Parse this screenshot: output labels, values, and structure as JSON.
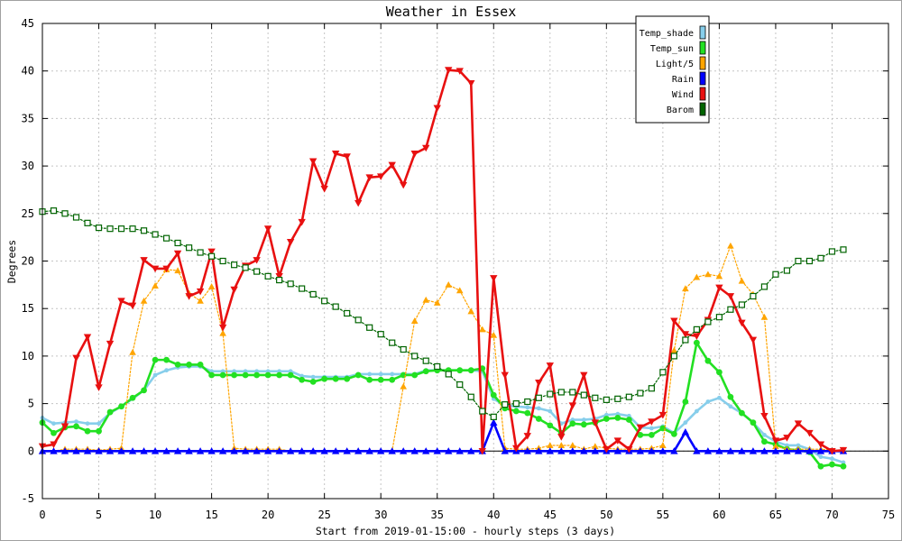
{
  "chart_data": {
    "type": "line",
    "title": "Weather in Essex",
    "xlabel": "Start from 2019-01-15:00 - hourly steps (3 days)",
    "ylabel": "Degrees",
    "xlim": [
      0,
      75
    ],
    "ylim": [
      -5,
      45
    ],
    "xticks": [
      0,
      5,
      10,
      15,
      20,
      25,
      30,
      35,
      40,
      45,
      50,
      55,
      60,
      65,
      70,
      75
    ],
    "yticks": [
      -5,
      0,
      5,
      10,
      15,
      20,
      25,
      30,
      35,
      40,
      45
    ],
    "grid": true,
    "legend": "top-right",
    "x": [
      0,
      1,
      2,
      3,
      4,
      5,
      6,
      7,
      8,
      9,
      10,
      11,
      12,
      13,
      14,
      15,
      16,
      17,
      18,
      19,
      20,
      21,
      22,
      23,
      24,
      25,
      26,
      27,
      28,
      29,
      30,
      31,
      32,
      33,
      34,
      35,
      36,
      37,
      38,
      39,
      40,
      41,
      42,
      43,
      44,
      45,
      46,
      47,
      48,
      49,
      50,
      51,
      52,
      53,
      54,
      55,
      56,
      57,
      58,
      59,
      60,
      61,
      62,
      63,
      64,
      65,
      66,
      67,
      68,
      69,
      70,
      71
    ],
    "series": [
      {
        "name": "Temp_shade",
        "color": "#87ceeb",
        "values": [
          3.5,
          2.9,
          3.0,
          3.1,
          2.9,
          2.9,
          4.0,
          4.7,
          5.5,
          6.4,
          8.0,
          8.5,
          8.8,
          8.9,
          8.9,
          8.4,
          8.4,
          8.4,
          8.4,
          8.4,
          8.4,
          8.4,
          8.4,
          7.9,
          7.8,
          7.8,
          7.8,
          7.8,
          8.1,
          8.1,
          8.1,
          8.1,
          8.1,
          8.1,
          8.5,
          8.5,
          8.5,
          8.5,
          8.5,
          8.4,
          5.5,
          4.8,
          4.7,
          4.6,
          4.5,
          4.2,
          2.9,
          3.3,
          3.3,
          3.4,
          3.8,
          3.9,
          3.7,
          2.5,
          2.4,
          2.6,
          1.9,
          3.0,
          4.2,
          5.2,
          5.6,
          4.7,
          4.0,
          3.0,
          1.7,
          1.0,
          0.6,
          0.6,
          0.2,
          -0.6,
          -0.8,
          -1.2
        ]
      },
      {
        "name": "Temp_sun",
        "color": "#22e022",
        "values": [
          3.0,
          1.9,
          2.5,
          2.6,
          2.1,
          2.1,
          4.1,
          4.7,
          5.6,
          6.4,
          9.6,
          9.6,
          9.1,
          9.1,
          9.1,
          8.0,
          8.0,
          8.0,
          8.0,
          8.0,
          8.0,
          8.0,
          8.0,
          7.5,
          7.3,
          7.6,
          7.6,
          7.6,
          8.0,
          7.5,
          7.5,
          7.5,
          8.0,
          8.0,
          8.4,
          8.5,
          8.5,
          8.5,
          8.5,
          8.7,
          5.9,
          4.5,
          4.2,
          4.0,
          3.4,
          2.7,
          1.9,
          2.9,
          2.8,
          3.0,
          3.4,
          3.5,
          3.3,
          1.7,
          1.7,
          2.4,
          1.8,
          5.2,
          11.4,
          9.5,
          8.3,
          5.7,
          4.0,
          3.0,
          1.0,
          0.7,
          0.2,
          0.1,
          -0.1,
          -1.6,
          -1.4,
          -1.6
        ]
      },
      {
        "name": "Light/5",
        "color": "#ffa500",
        "values": [
          0.0,
          0.0,
          0.2,
          0.2,
          0.2,
          0.1,
          0.2,
          0.3,
          10.4,
          15.8,
          17.4,
          19.1,
          19.0,
          16.6,
          15.8,
          17.3,
          12.4,
          0.3,
          0.2,
          0.2,
          0.2,
          0.2,
          0.0,
          0.0,
          0.0,
          0.0,
          0.0,
          0.0,
          0.0,
          0.0,
          0.0,
          0.0,
          6.8,
          13.7,
          15.9,
          15.6,
          17.5,
          16.9,
          14.7,
          12.8,
          12.2,
          0.3,
          0.2,
          0.2,
          0.3,
          0.6,
          0.6,
          0.6,
          0.2,
          0.5,
          0.3,
          0.2,
          0.2,
          0.2,
          0.3,
          0.6,
          10.6,
          17.1,
          18.3,
          18.6,
          18.4,
          21.6,
          17.9,
          16.5,
          14.1,
          0.5,
          0.2,
          0.2,
          0.2,
          0.2,
          0.1,
          0.1
        ]
      },
      {
        "name": "Rain",
        "color": "#0000ff",
        "values": [
          0,
          0,
          0,
          0,
          0,
          0,
          0,
          0,
          0,
          0,
          0,
          0,
          0,
          0,
          0,
          0,
          0,
          0,
          0,
          0,
          0,
          0,
          0,
          0,
          0,
          0,
          0,
          0,
          0,
          0,
          0,
          0,
          0,
          0,
          0,
          0,
          0,
          0,
          0,
          0,
          3.0,
          0,
          0,
          0,
          0,
          0,
          0,
          0,
          0,
          0,
          0,
          0,
          0,
          0,
          0,
          0,
          0,
          2.0,
          0,
          0,
          0,
          0,
          0,
          0,
          0,
          0,
          0,
          0,
          0,
          0,
          0,
          0
        ]
      },
      {
        "name": "Wind",
        "color": "#e81010",
        "values": [
          0.5,
          0.7,
          2.6,
          9.8,
          12.0,
          6.7,
          11.3,
          15.8,
          15.3,
          20.1,
          19.2,
          19.2,
          20.8,
          16.3,
          16.8,
          21.0,
          13.0,
          17.0,
          19.5,
          20.1,
          23.4,
          18.4,
          22.0,
          24.1,
          30.5,
          27.6,
          31.3,
          31.0,
          26.1,
          28.8,
          28.9,
          30.1,
          28.0,
          31.3,
          31.9,
          36.1,
          40.1,
          40.0,
          38.7,
          0.0,
          18.2,
          8.0,
          0.3,
          1.6,
          7.2,
          9.0,
          1.5,
          4.8,
          8.0,
          3.0,
          0.2,
          1.1,
          0.2,
          2.5,
          3.1,
          3.8,
          13.7,
          12.3,
          12.1,
          13.8,
          17.2,
          16.3,
          13.5,
          11.7,
          3.7,
          1.1,
          1.4,
          2.9,
          1.9,
          0.7,
          0.0,
          0.1
        ]
      },
      {
        "name": "Barom",
        "color": "#006400",
        "values": [
          25.2,
          25.3,
          25.0,
          24.6,
          24.0,
          23.5,
          23.4,
          23.4,
          23.4,
          23.2,
          22.8,
          22.4,
          21.9,
          21.4,
          20.9,
          20.5,
          20.0,
          19.6,
          19.3,
          18.9,
          18.4,
          18.0,
          17.6,
          17.1,
          16.5,
          15.8,
          15.2,
          14.5,
          13.8,
          13.0,
          12.3,
          11.4,
          10.7,
          10.0,
          9.5,
          8.9,
          8.1,
          7.0,
          5.7,
          4.2,
          3.6,
          4.9,
          5.0,
          5.2,
          5.6,
          6.0,
          6.2,
          6.2,
          5.9,
          5.6,
          5.4,
          5.5,
          5.7,
          6.1,
          6.6,
          8.3,
          10.0,
          11.7,
          12.8,
          13.6,
          14.1,
          14.9,
          15.4,
          16.3,
          17.3,
          18.6,
          19.0,
          20.0,
          20.0,
          20.3,
          21.0,
          21.2
        ]
      }
    ]
  }
}
